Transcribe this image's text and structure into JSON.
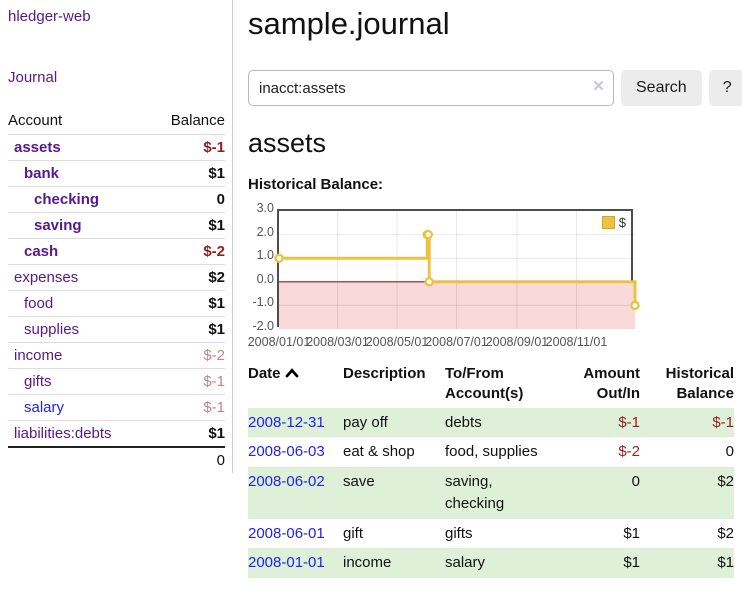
{
  "colors": {
    "link_purple": "#551a8b",
    "link_blue": "#2222ee",
    "negative": "#941f1f",
    "negative_muted": "#c68585",
    "row_green": "#dff0d8",
    "chart_gold": "#edc240",
    "chart_negative_fill": "#f9d9d9",
    "chart_zero_line": "#8b1a1a"
  },
  "app": {
    "title": "hledger-web",
    "nav_journal": "Journal"
  },
  "sidebar": {
    "columns": {
      "account": "Account",
      "balance": "Balance"
    },
    "accounts": [
      {
        "name": "assets",
        "indent": 1,
        "bold": true,
        "balance": "$-1"
      },
      {
        "name": "bank",
        "indent": 2,
        "bold": true,
        "balance": "$1"
      },
      {
        "name": "checking",
        "indent": 3,
        "bold": true,
        "balance": "0"
      },
      {
        "name": "saving",
        "indent": 3,
        "bold": true,
        "balance": "$1"
      },
      {
        "name": "cash",
        "indent": 2,
        "bold": true,
        "balance": "$-2"
      },
      {
        "name": "expenses",
        "indent": 1,
        "bold": false,
        "balance": "$2"
      },
      {
        "name": "food",
        "indent": 2,
        "bold": false,
        "balance": "$1"
      },
      {
        "name": "supplies",
        "indent": 2,
        "bold": false,
        "balance": "$1"
      },
      {
        "name": "income",
        "indent": 1,
        "bold": false,
        "balance": "$-2",
        "muted": true
      },
      {
        "name": "gifts",
        "indent": 2,
        "bold": false,
        "balance": "$-1",
        "muted": true
      },
      {
        "name": "salary",
        "indent": 2,
        "bold": false,
        "balance": "$-1",
        "muted": true,
        "link_color": "blue"
      },
      {
        "name": "liabilities:debts",
        "indent": 1,
        "bold": false,
        "balance": "$1"
      }
    ],
    "total": "0"
  },
  "header": {
    "title": "sample.journal"
  },
  "search": {
    "value": "inacct:assets",
    "clear_icon": "✕",
    "button_label": "Search",
    "help_label": "?"
  },
  "account_page": {
    "heading": "assets",
    "chart_label": "Historical Balance:"
  },
  "chart_data": {
    "type": "line",
    "step": true,
    "title": "Historical Balance:",
    "x_range": [
      "2008-01-01",
      "2008-12-31"
    ],
    "ylim": [
      -2,
      3
    ],
    "y_ticks": [
      3.0,
      2.0,
      1.0,
      0.0,
      -1.0,
      -2.0
    ],
    "x_ticks": [
      {
        "date": "2008-01-01",
        "label": "2008/01/01"
      },
      {
        "date": "2008-03-01",
        "label": "2008/03/01"
      },
      {
        "date": "2008-05-01",
        "label": "2008/05/01"
      },
      {
        "date": "2008-07-01",
        "label": "2008/07/01"
      },
      {
        "date": "2008-09-01",
        "label": "2008/09/01"
      },
      {
        "date": "2008-11-01",
        "label": "2008/11/01"
      }
    ],
    "legend": "$",
    "legend_position": "top-right",
    "grid": true,
    "negative_region": true,
    "series": [
      {
        "name": "$",
        "color": "#edc240",
        "points": [
          [
            "2008-01-01",
            1
          ],
          [
            "2008-06-01",
            2
          ],
          [
            "2008-06-02",
            2
          ],
          [
            "2008-06-03",
            0
          ],
          [
            "2008-12-31",
            -1
          ]
        ]
      }
    ]
  },
  "table": {
    "headers": [
      {
        "id": "date",
        "lines": [
          "Date"
        ],
        "align": "left",
        "sortable": true,
        "sort_icon": "chevron-up"
      },
      {
        "id": "description",
        "lines": [
          "Description"
        ],
        "align": "left",
        "sortable": false
      },
      {
        "id": "accounts",
        "lines": [
          "To/From",
          "Account(s)"
        ],
        "align": "left",
        "sortable": false
      },
      {
        "id": "amount",
        "lines": [
          "Amount",
          "Out/In"
        ],
        "align": "right",
        "sortable": false
      },
      {
        "id": "balance",
        "lines": [
          "Historical",
          "Balance"
        ],
        "align": "right",
        "sortable": false
      }
    ],
    "rows": [
      {
        "date": "2008-12-31",
        "description": "pay off",
        "accounts": [
          "debts"
        ],
        "amount": "$-1",
        "balance": "$-1"
      },
      {
        "date": "2008-06-03",
        "description": "eat & shop",
        "accounts": [
          "food, supplies"
        ],
        "amount": "$-2",
        "balance": "0"
      },
      {
        "date": "2008-06-02",
        "description": "save",
        "accounts": [
          "saving,",
          "checking"
        ],
        "amount": "0",
        "balance": "$2"
      },
      {
        "date": "2008-06-01",
        "description": "gift",
        "accounts": [
          "gifts"
        ],
        "amount": "$1",
        "balance": "$2"
      },
      {
        "date": "2008-01-01",
        "description": "income",
        "accounts": [
          "salary"
        ],
        "amount": "$1",
        "balance": "$1"
      }
    ]
  }
}
